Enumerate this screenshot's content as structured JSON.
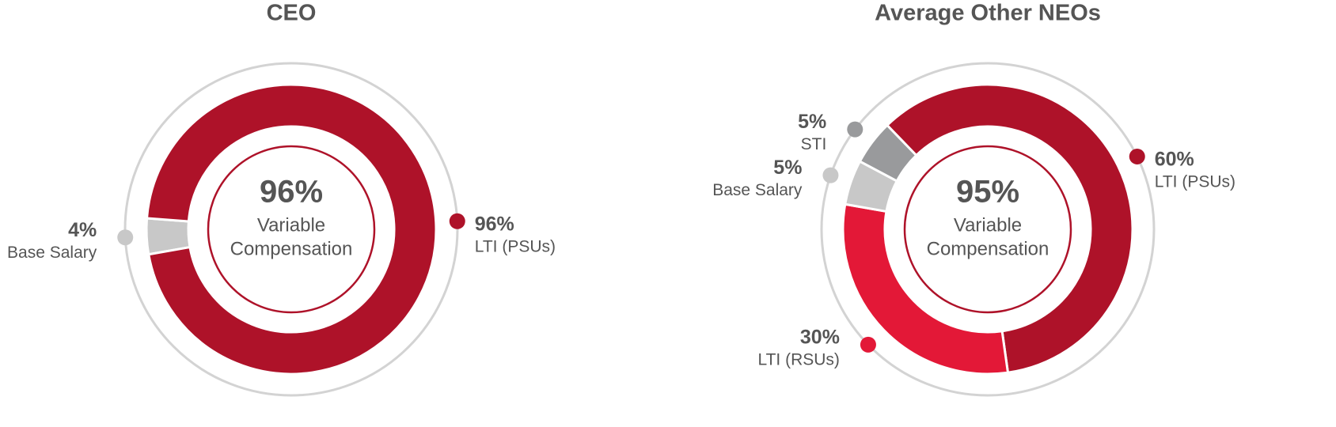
{
  "chart_data": [
    {
      "type": "pie",
      "title": "CEO",
      "categories": [
        "Base Salary",
        "LTI (PSUs)"
      ],
      "values": [
        4,
        96
      ],
      "value_labels": [
        "4%",
        "96%"
      ],
      "colors": [
        "#c8c8c8",
        "#ae1229"
      ],
      "center_text": "96%",
      "center_caption": [
        "Variable",
        "Compensation"
      ]
    },
    {
      "type": "pie",
      "title": "Average Other NEOs",
      "categories": [
        "LTI (PSUs)",
        "LTI (RSUs)",
        "Base Salary",
        "STI"
      ],
      "values": [
        60,
        30,
        5,
        5
      ],
      "value_labels": [
        "60%",
        "30%",
        "5%",
        "5%"
      ],
      "colors": [
        "#ae1229",
        "#e31837",
        "#c8c8c8",
        "#999a9c"
      ],
      "center_text": "95%",
      "center_caption": [
        "Variable",
        "Compensation"
      ]
    }
  ]
}
